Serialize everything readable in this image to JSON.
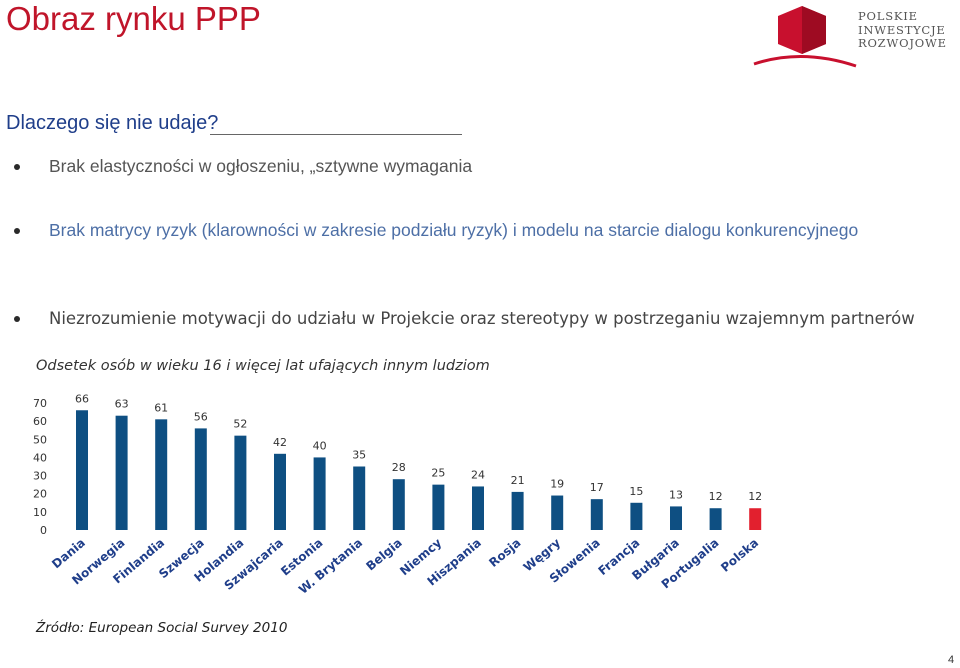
{
  "header": {
    "title": "Obraz rynku PPP",
    "logo_lines": [
      "POLSKIE",
      "INWESTYCJE",
      "ROZWOJOWE"
    ]
  },
  "subtitle": "Dlaczego się nie udaje?",
  "bullets": [
    "Brak elastyczności w ogłoszeniu, „sztywne wymagania",
    "Brak matrycy ryzyk (klarowności w zakresie podziału ryzyk)  i modelu na starcie dialogu konkurencyjnego",
    "Niezrozumienie motywacji do udziału w Projekcie oraz stereotypy w postrzeganiu wzajemnym partnerów"
  ],
  "source": "Źródło: European Social Survey 2010",
  "page_number": "4",
  "colors": {
    "title": "#c0152a",
    "subtitle": "#1f3e8a",
    "bar": "#0e4f82",
    "highlight_bar": "#e2202e"
  },
  "chart_data": {
    "type": "bar",
    "title": "Odsetek osób w wieku 16 i więcej lat ufających innym ludziom",
    "categories": [
      "Dania",
      "Norwegia",
      "Finlandia",
      "Szwecja",
      "Holandia",
      "Szwajcaria",
      "Estonia",
      "W. Brytania",
      "Belgia",
      "Niemcy",
      "Hiszpania",
      "Rosja",
      "Węgry",
      "Słowenia",
      "Francja",
      "Bułgaria",
      "Portugalia",
      "Polska"
    ],
    "values": [
      66,
      63,
      61,
      56,
      52,
      42,
      40,
      35,
      28,
      25,
      24,
      21,
      19,
      17,
      15,
      13,
      12,
      12
    ],
    "highlight": "Polska",
    "yticks": [
      0,
      10,
      20,
      30,
      40,
      50,
      60,
      70
    ],
    "ylim": [
      0,
      70
    ],
    "grid": false,
    "legend": "none"
  }
}
